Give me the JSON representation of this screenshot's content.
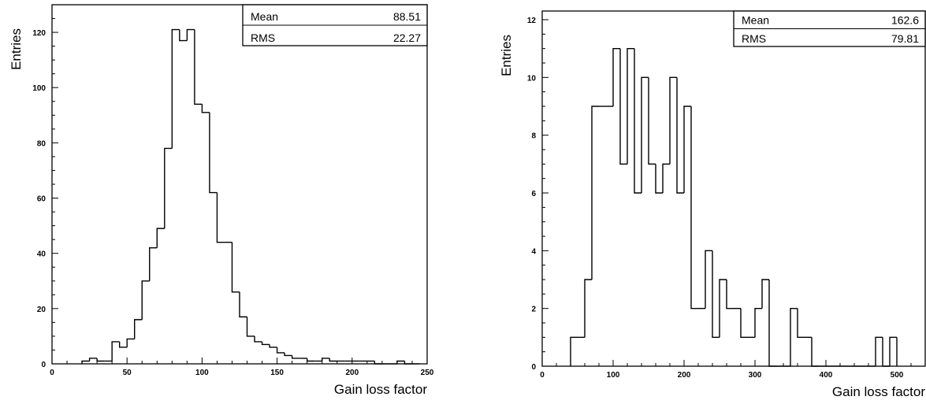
{
  "chart_data": [
    {
      "type": "bar",
      "title": "",
      "xlabel": "Gain loss factor",
      "ylabel": "Entries",
      "xlim": [
        0,
        250
      ],
      "ylim": [
        0,
        130
      ],
      "xticks": [
        0,
        50,
        100,
        150,
        200,
        250
      ],
      "yticks": [
        0,
        20,
        40,
        60,
        80,
        100,
        120
      ],
      "bin_width": 5,
      "bins_x_start": [
        20,
        25,
        30,
        35,
        40,
        45,
        50,
        55,
        60,
        65,
        70,
        75,
        80,
        85,
        90,
        95,
        100,
        105,
        110,
        115,
        120,
        125,
        130,
        135,
        140,
        145,
        150,
        155,
        160,
        165,
        170,
        175,
        180,
        185,
        190,
        195,
        200,
        205,
        210,
        215,
        220,
        225,
        230,
        235,
        240
      ],
      "values": [
        1,
        2,
        1,
        1,
        8,
        6,
        9,
        16,
        30,
        42,
        49,
        78,
        121,
        117,
        121,
        94,
        91,
        62,
        44,
        44,
        26,
        17,
        10,
        8,
        7,
        6,
        4,
        3,
        2,
        2,
        1,
        1,
        2,
        1,
        1,
        1,
        1,
        1,
        1,
        0,
        0,
        0,
        1,
        0,
        0
      ],
      "stats": {
        "mean_label": "Mean",
        "mean": "88.51",
        "rms_label": "RMS",
        "rms": "22.27"
      }
    },
    {
      "type": "bar",
      "title": "",
      "xlabel": "Gain loss factor",
      "ylabel": "Entries",
      "xlim": [
        0,
        540
      ],
      "ylim": [
        0,
        12.3
      ],
      "xticks": [
        0,
        100,
        200,
        300,
        400,
        500
      ],
      "yticks": [
        0,
        2,
        4,
        6,
        8,
        10,
        12
      ],
      "bin_width": 10,
      "bins_x_start": [
        40,
        50,
        60,
        70,
        80,
        90,
        100,
        110,
        120,
        130,
        140,
        150,
        160,
        170,
        180,
        190,
        200,
        210,
        220,
        230,
        240,
        250,
        260,
        270,
        280,
        290,
        300,
        310,
        320,
        330,
        340,
        350,
        360,
        370,
        380,
        390,
        400,
        410,
        420,
        430,
        440,
        450,
        460,
        470,
        480,
        490
      ],
      "values": [
        1,
        1,
        3,
        9,
        9,
        9,
        11,
        7,
        11,
        6,
        10,
        7,
        6,
        7,
        10,
        6,
        9,
        2,
        2,
        4,
        1,
        3,
        2,
        2,
        1,
        1,
        2,
        3,
        0,
        0,
        0,
        2,
        1,
        1,
        0,
        0,
        0,
        0,
        0,
        0,
        0,
        0,
        0,
        1,
        0,
        1
      ],
      "stats": {
        "mean_label": "Mean",
        "mean": "162.6",
        "rms_label": "RMS",
        "rms": "79.81"
      }
    }
  ]
}
